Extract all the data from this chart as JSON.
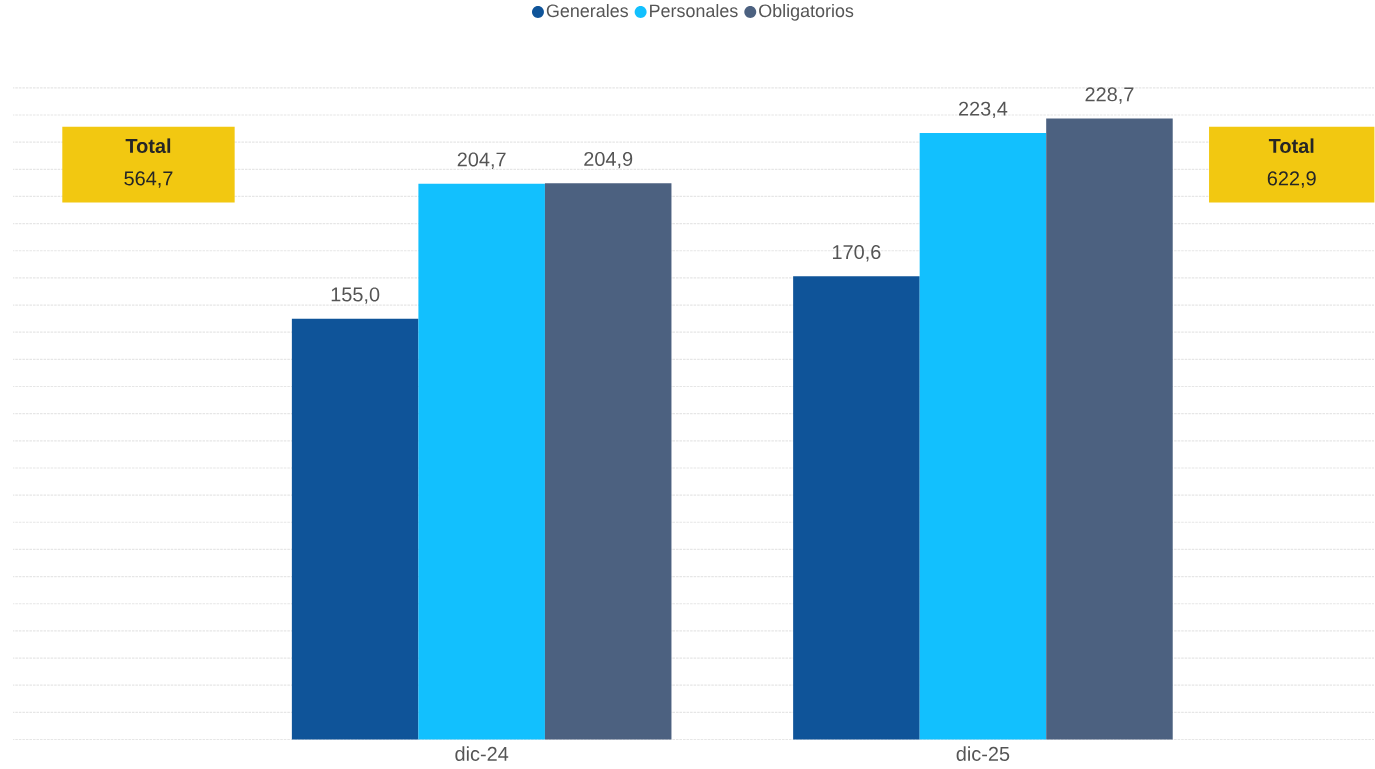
{
  "chart_data": {
    "type": "bar",
    "categories": [
      "dic-24",
      "dic-25"
    ],
    "series": [
      {
        "name": "Generales",
        "color": "#0f5499",
        "values": [
          155.0,
          170.6
        ],
        "value_labels": [
          "155,0",
          "170,6"
        ]
      },
      {
        "name": "Personales",
        "color": "#12c0fe",
        "values": [
          204.7,
          223.4
        ],
        "value_labels": [
          "204,7",
          "223,4"
        ]
      },
      {
        "name": "Obligatorios",
        "color": "#4c6180",
        "values": [
          204.9,
          228.7
        ],
        "value_labels": [
          "204,9",
          "228,7"
        ]
      }
    ],
    "grid": "y",
    "legend": "top",
    "marker": "circle",
    "tick_labels": "x",
    "annotations": [
      "**Total**",
      "564,7",
      "**Total**",
      "622,9"
    ]
  }
}
